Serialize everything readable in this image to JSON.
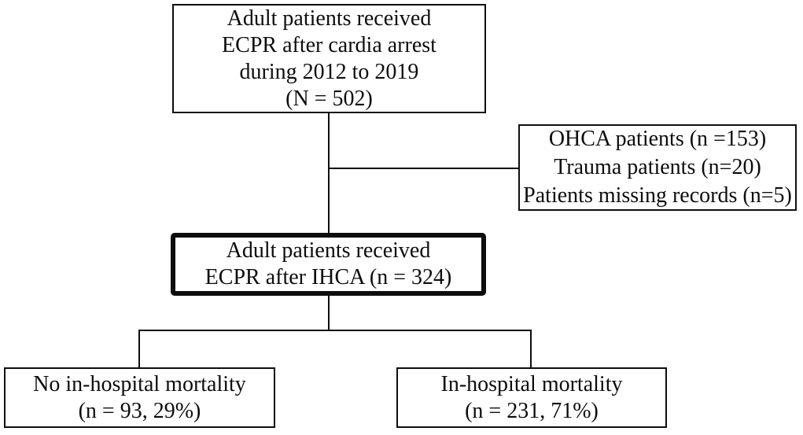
{
  "figure": {
    "type": "patient-flow-diagram",
    "background_color": "#ffffff",
    "line_color": "#0d0d0d",
    "boxes": {
      "enrollment": {
        "lines": {
          "0": "Adult patients received",
          "1": "ECPR after cardia arrest",
          "2": "during 2012 to 2019",
          "3": "(N = 502)"
        }
      },
      "exclusions": {
        "lines": {
          "0": "OHCA patients (n =153)",
          "1": "Trauma patients (n=20)",
          "2": "Patients missing records (n=5)"
        }
      },
      "ihca": {
        "lines": {
          "0": "Adult patients received",
          "1": "ECPR after IHCA (n = 324)"
        }
      },
      "no_mortality": {
        "lines": {
          "0": "No in-hospital mortality",
          "1": "(n = 93, 29%)"
        }
      },
      "mortality": {
        "lines": {
          "0": "In-hospital mortality",
          "1": "(n = 231, 71%)"
        }
      }
    }
  }
}
